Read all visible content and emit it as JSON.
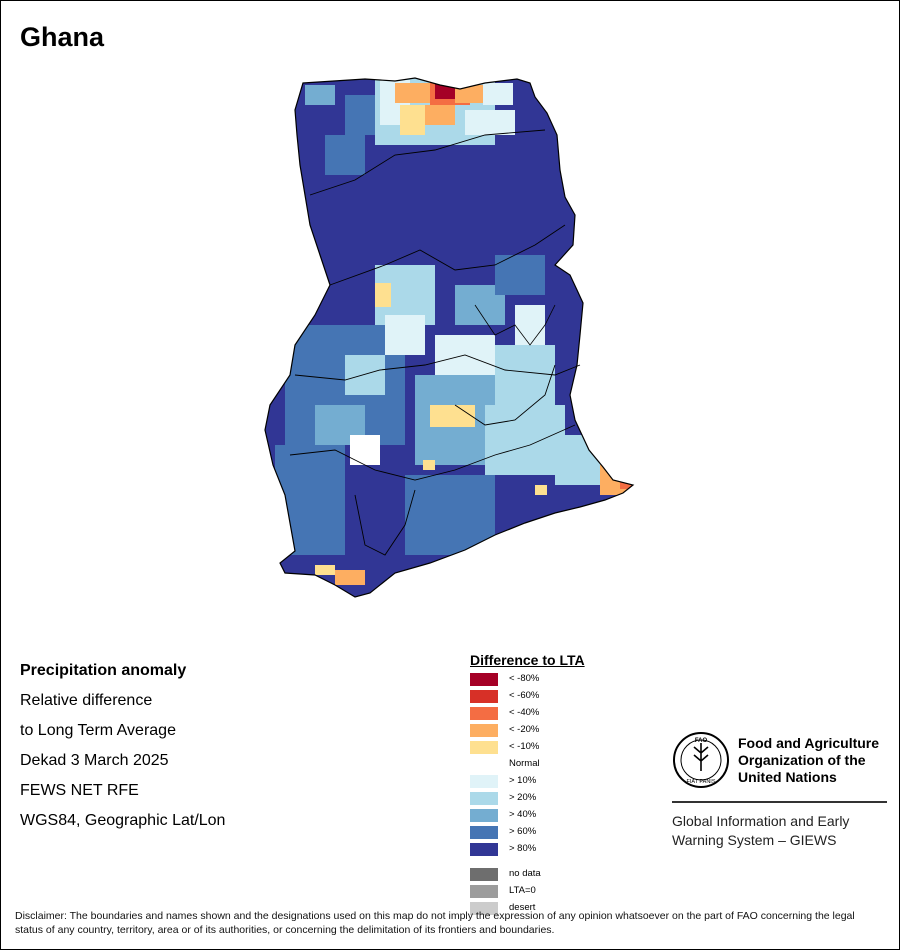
{
  "title": "Ghana",
  "info": {
    "line1": "Precipitation anomaly",
    "line2": "Relative difference",
    "line3": "to Long Term Average",
    "line4": "Dekad 3 March 2025",
    "line5": "FEWS NET RFE",
    "line6": "WGS84, Geographic Lat/Lon"
  },
  "legend": {
    "title": "Difference to LTA",
    "items": [
      {
        "label": "< -80%",
        "color": "#a50026"
      },
      {
        "label": "< -60%",
        "color": "#d73027"
      },
      {
        "label": "< -40%",
        "color": "#f46d43"
      },
      {
        "label": "< -20%",
        "color": "#fdae61"
      },
      {
        "label": "< -10%",
        "color": "#fee090"
      },
      {
        "label": "Normal",
        "color": "#ffffff"
      },
      {
        "label": "> 10%",
        "color": "#e0f3f8"
      },
      {
        "label": "> 20%",
        "color": "#abd9e9"
      },
      {
        "label": "> 40%",
        "color": "#74add1"
      },
      {
        "label": "> 60%",
        "color": "#4575b4"
      },
      {
        "label": "> 80%",
        "color": "#313695"
      }
    ],
    "extra": [
      {
        "label": "no data",
        "color": "#6e6e6e"
      },
      {
        "label": "LTA=0",
        "color": "#9c9c9c"
      },
      {
        "label": "desert",
        "color": "#cccccc"
      }
    ]
  },
  "fao": {
    "name1": "Food and Agriculture",
    "name2": "Organization of the",
    "name3": "United Nations",
    "logo_text": "FAO",
    "logo_motto": "FIAT PANIS",
    "giews1": "Global Information and Early",
    "giews2": "Warning System – GIEWS"
  },
  "disclaimer": "Disclaimer: The boundaries and names shown and the designations used on this map do not imply the expression of any opinion whatsoever on the part of FAO concerning the legal status of any country, territory, area or of its authorities, or concerning the delimitation of its frontiers and boundaries."
}
